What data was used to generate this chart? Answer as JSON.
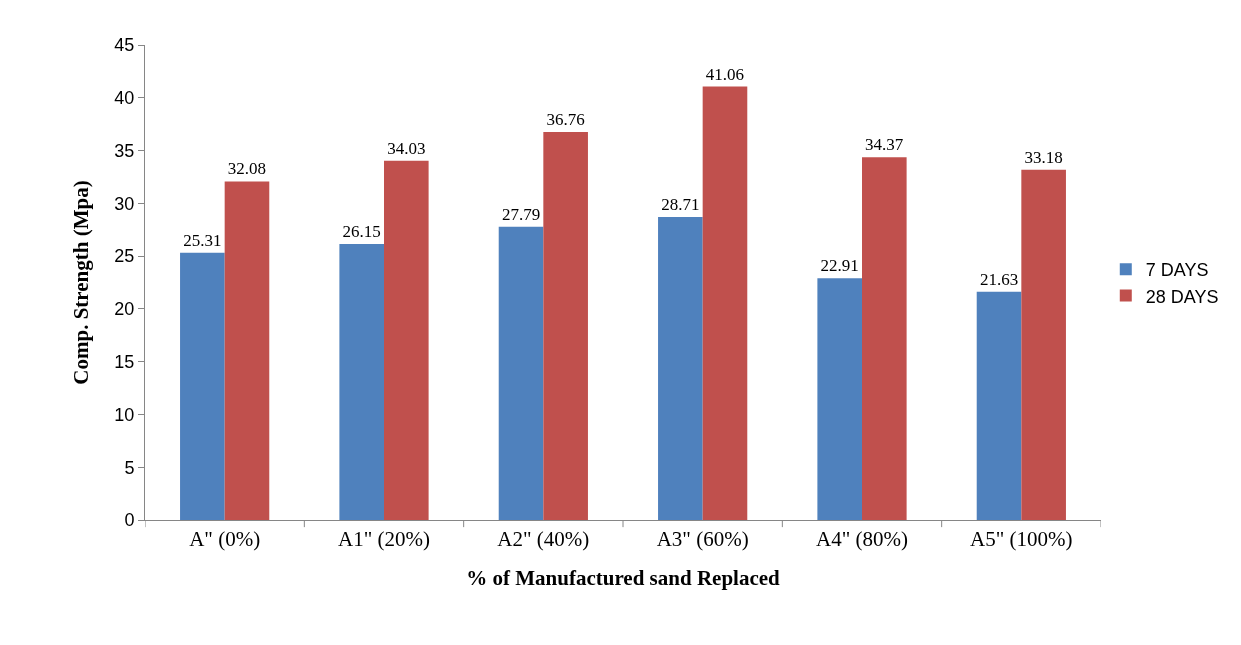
{
  "chart_data": {
    "type": "bar",
    "xlabel": "% of Manufactured sand Replaced",
    "ylabel": "Comp. Strength (Mpa)",
    "categories": [
      "A\" (0%)",
      "A1\" (20%)",
      "A2\" (40%)",
      "A3\" (60%)",
      "A4\" (80%)",
      "A5\" (100%)"
    ],
    "series": [
      {
        "name": "7 DAYS",
        "color": "#4f81bd",
        "values": [
          25.31,
          26.15,
          27.79,
          28.71,
          22.91,
          21.63
        ]
      },
      {
        "name": "28 DAYS",
        "color": "#c0504d",
        "values": [
          32.08,
          34.03,
          36.76,
          41.06,
          34.37,
          33.18
        ]
      }
    ],
    "ylim": [
      0,
      45
    ],
    "yticks": [
      0,
      5,
      10,
      15,
      20,
      25,
      30,
      35,
      40,
      45
    ],
    "data_labels": true,
    "legend": "right"
  }
}
